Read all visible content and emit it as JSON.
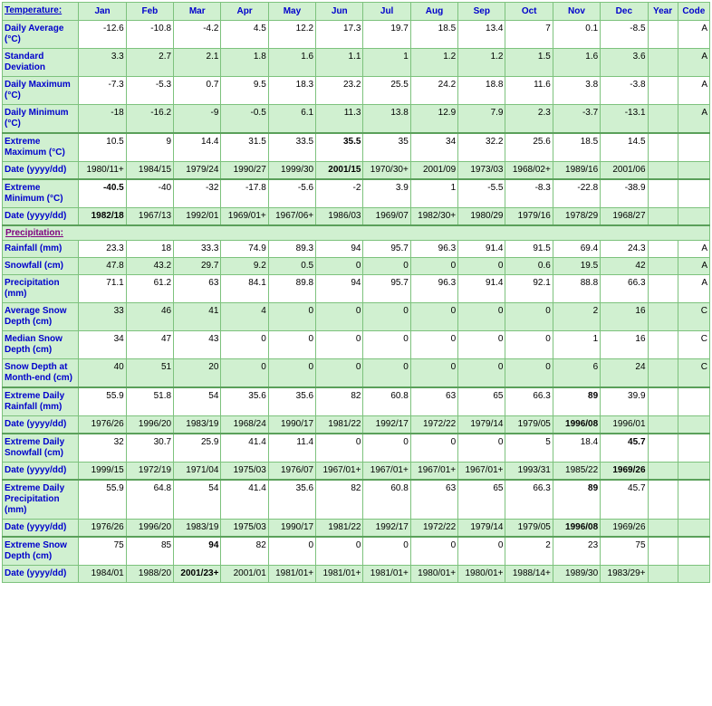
{
  "months": [
    "Jan",
    "Feb",
    "Mar",
    "Apr",
    "May",
    "Jun",
    "Jul",
    "Aug",
    "Sep",
    "Oct",
    "Nov",
    "Dec"
  ],
  "yearCol": "Year",
  "codeCol": "Code",
  "sections": {
    "temp": "Temperature:",
    "precip": "Precipitation:"
  },
  "rows": {
    "davg": {
      "label": "Daily Average (°C)",
      "vals": [
        "-12.6",
        "-10.8",
        "-4.2",
        "4.5",
        "12.2",
        "17.3",
        "19.7",
        "18.5",
        "13.4",
        "7",
        "0.1",
        "-8.5"
      ],
      "year": "",
      "code": "A"
    },
    "sdev": {
      "label": "Standard Deviation",
      "vals": [
        "3.3",
        "2.7",
        "2.1",
        "1.8",
        "1.6",
        "1.1",
        "1",
        "1.2",
        "1.2",
        "1.5",
        "1.6",
        "3.6"
      ],
      "year": "",
      "code": "A"
    },
    "dmax": {
      "label": "Daily Maximum (°C)",
      "vals": [
        "-7.3",
        "-5.3",
        "0.7",
        "9.5",
        "18.3",
        "23.2",
        "25.5",
        "24.2",
        "18.8",
        "11.6",
        "3.8",
        "-3.8"
      ],
      "year": "",
      "code": "A"
    },
    "dmin": {
      "label": "Daily Minimum (°C)",
      "vals": [
        "-18",
        "-16.2",
        "-9",
        "-0.5",
        "6.1",
        "11.3",
        "13.8",
        "12.9",
        "7.9",
        "2.3",
        "-3.7",
        "-13.1"
      ],
      "year": "",
      "code": "A"
    },
    "emax": {
      "label": "Extreme Maximum (°C)",
      "vals": [
        "10.5",
        "9",
        "14.4",
        "31.5",
        "33.5",
        "35.5",
        "35",
        "34",
        "32.2",
        "25.6",
        "18.5",
        "14.5"
      ],
      "bold": [
        5
      ],
      "year": "",
      "code": ""
    },
    "emaxd": {
      "label": "Date (yyyy/dd)",
      "vals": [
        "1980/11+",
        "1984/15",
        "1979/24",
        "1990/27",
        "1999/30",
        "2001/15",
        "1970/30+",
        "2001/09",
        "1973/03",
        "1968/02+",
        "1989/16",
        "2001/06"
      ],
      "bold": [
        5
      ],
      "year": "",
      "code": ""
    },
    "emin": {
      "label": "Extreme Minimum (°C)",
      "vals": [
        "-40.5",
        "-40",
        "-32",
        "-17.8",
        "-5.6",
        "-2",
        "3.9",
        "1",
        "-5.5",
        "-8.3",
        "-22.8",
        "-38.9"
      ],
      "bold": [
        0
      ],
      "year": "",
      "code": ""
    },
    "emind": {
      "label": "Date (yyyy/dd)",
      "vals": [
        "1982/18",
        "1967/13",
        "1992/01",
        "1969/01+",
        "1967/06+",
        "1986/03",
        "1969/07",
        "1982/30+",
        "1980/29",
        "1979/16",
        "1978/29",
        "1968/27"
      ],
      "bold": [
        0
      ],
      "year": "",
      "code": ""
    },
    "rain": {
      "label": "Rainfall (mm)",
      "vals": [
        "23.3",
        "18",
        "33.3",
        "74.9",
        "89.3",
        "94",
        "95.7",
        "96.3",
        "91.4",
        "91.5",
        "69.4",
        "24.3"
      ],
      "year": "",
      "code": "A"
    },
    "snow": {
      "label": "Snowfall (cm)",
      "vals": [
        "47.8",
        "43.2",
        "29.7",
        "9.2",
        "0.5",
        "0",
        "0",
        "0",
        "0",
        "0.6",
        "19.5",
        "42"
      ],
      "year": "",
      "code": "A"
    },
    "prec": {
      "label": "Precipitation (mm)",
      "vals": [
        "71.1",
        "61.2",
        "63",
        "84.1",
        "89.8",
        "94",
        "95.7",
        "96.3",
        "91.4",
        "92.1",
        "88.8",
        "66.3"
      ],
      "year": "",
      "code": "A"
    },
    "asd": {
      "label": "Average Snow Depth (cm)",
      "vals": [
        "33",
        "46",
        "41",
        "4",
        "0",
        "0",
        "0",
        "0",
        "0",
        "0",
        "2",
        "16"
      ],
      "year": "",
      "code": "C"
    },
    "msd": {
      "label": "Median Snow Depth (cm)",
      "vals": [
        "34",
        "47",
        "43",
        "0",
        "0",
        "0",
        "0",
        "0",
        "0",
        "0",
        "1",
        "16"
      ],
      "year": "",
      "code": "C"
    },
    "sdme": {
      "label": "Snow Depth at Month-end (cm)",
      "vals": [
        "40",
        "51",
        "20",
        "0",
        "0",
        "0",
        "0",
        "0",
        "0",
        "0",
        "6",
        "24"
      ],
      "year": "",
      "code": "C"
    },
    "edr": {
      "label": "Extreme Daily Rainfall (mm)",
      "vals": [
        "55.9",
        "51.8",
        "54",
        "35.6",
        "35.6",
        "82",
        "60.8",
        "63",
        "65",
        "66.3",
        "89",
        "39.9"
      ],
      "bold": [
        10
      ],
      "year": "",
      "code": ""
    },
    "edrd": {
      "label": "Date (yyyy/dd)",
      "vals": [
        "1976/26",
        "1996/20",
        "1983/19",
        "1968/24",
        "1990/17",
        "1981/22",
        "1992/17",
        "1972/22",
        "1979/14",
        "1979/05",
        "1996/08",
        "1996/01"
      ],
      "bold": [
        10
      ],
      "year": "",
      "code": ""
    },
    "eds": {
      "label": "Extreme Daily Snowfall (cm)",
      "vals": [
        "32",
        "30.7",
        "25.9",
        "41.4",
        "11.4",
        "0",
        "0",
        "0",
        "0",
        "5",
        "18.4",
        "45.7"
      ],
      "bold": [
        11
      ],
      "year": "",
      "code": ""
    },
    "edsd": {
      "label": "Date (yyyy/dd)",
      "vals": [
        "1999/15",
        "1972/19",
        "1971/04",
        "1975/03",
        "1976/07",
        "1967/01+",
        "1967/01+",
        "1967/01+",
        "1967/01+",
        "1993/31",
        "1985/22",
        "1969/26"
      ],
      "bold": [
        11
      ],
      "year": "",
      "code": ""
    },
    "edp": {
      "label": "Extreme Daily Precipitation (mm)",
      "vals": [
        "55.9",
        "64.8",
        "54",
        "41.4",
        "35.6",
        "82",
        "60.8",
        "63",
        "65",
        "66.3",
        "89",
        "45.7"
      ],
      "bold": [
        10
      ],
      "year": "",
      "code": ""
    },
    "edpd": {
      "label": "Date (yyyy/dd)",
      "vals": [
        "1976/26",
        "1996/20",
        "1983/19",
        "1975/03",
        "1990/17",
        "1981/22",
        "1992/17",
        "1972/22",
        "1979/14",
        "1979/05",
        "1996/08",
        "1969/26"
      ],
      "bold": [
        10
      ],
      "year": "",
      "code": ""
    },
    "esd": {
      "label": "Extreme Snow Depth (cm)",
      "vals": [
        "75",
        "85",
        "94",
        "82",
        "0",
        "0",
        "0",
        "0",
        "0",
        "2",
        "23",
        "75"
      ],
      "bold": [
        2
      ],
      "year": "",
      "code": ""
    },
    "esdd": {
      "label": "Date (yyyy/dd)",
      "vals": [
        "1984/01",
        "1988/20",
        "2001/23+",
        "2001/01",
        "1981/01+",
        "1981/01+",
        "1981/01+",
        "1980/01+",
        "1980/01+",
        "1988/14+",
        "1989/30",
        "1983/29+"
      ],
      "bold": [
        2
      ],
      "year": "",
      "code": ""
    }
  },
  "layout": [
    {
      "section": "temp",
      "link": true
    },
    {
      "row": "davg",
      "bg": "white"
    },
    {
      "row": "sdev",
      "bg": "green"
    },
    {
      "row": "dmax",
      "bg": "white"
    },
    {
      "row": "dmin",
      "bg": "green"
    },
    {
      "row": "emax",
      "bg": "white",
      "sep": true
    },
    {
      "row": "emaxd",
      "bg": "green"
    },
    {
      "row": "emin",
      "bg": "white",
      "sep": true
    },
    {
      "row": "emind",
      "bg": "green"
    },
    {
      "section": "precip",
      "link": true,
      "sep": true
    },
    {
      "row": "rain",
      "bg": "white"
    },
    {
      "row": "snow",
      "bg": "green"
    },
    {
      "row": "prec",
      "bg": "white"
    },
    {
      "row": "asd",
      "bg": "green"
    },
    {
      "row": "msd",
      "bg": "white"
    },
    {
      "row": "sdme",
      "bg": "green"
    },
    {
      "row": "edr",
      "bg": "white",
      "sep": true
    },
    {
      "row": "edrd",
      "bg": "green"
    },
    {
      "row": "eds",
      "bg": "white",
      "sep": true
    },
    {
      "row": "edsd",
      "bg": "green"
    },
    {
      "row": "edp",
      "bg": "white",
      "sep": true
    },
    {
      "row": "edpd",
      "bg": "green"
    },
    {
      "row": "esd",
      "bg": "white",
      "sep": true
    },
    {
      "row": "esdd",
      "bg": "green"
    }
  ],
  "colors": {
    "border": "#7dc27d",
    "headerBg": "#d0f0d0",
    "headerFg": "#0000cc",
    "greenRow": "#d0f0d0",
    "whiteRow": "#ffffff",
    "sectionFg": "#800080"
  }
}
